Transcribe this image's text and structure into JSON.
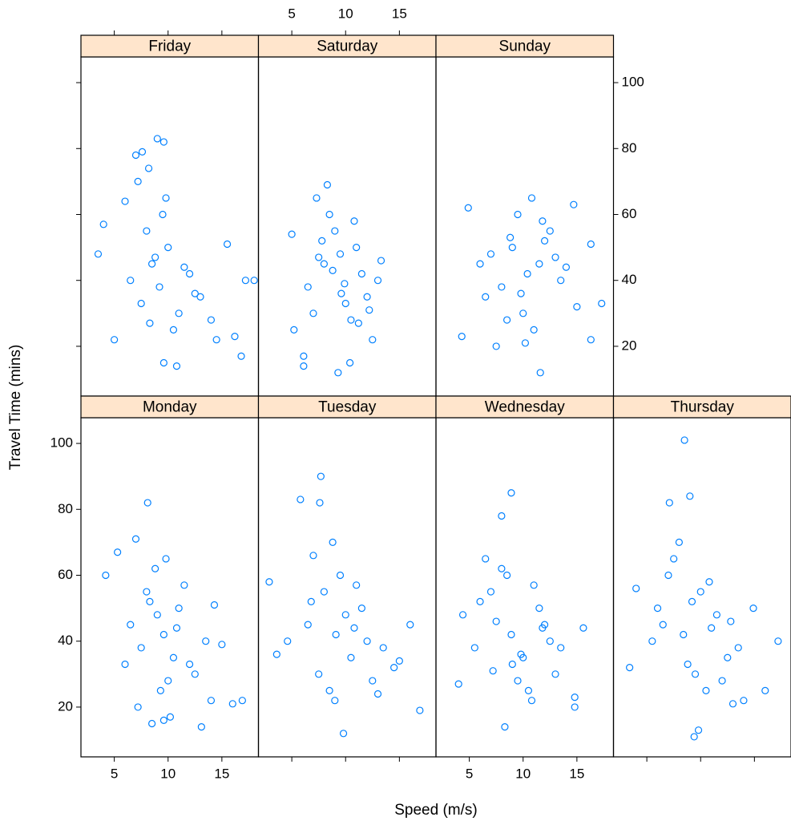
{
  "chart_data": {
    "type": "scatter",
    "x_label": "Speed (m/s)",
    "y_label": "Travel Time (mins)",
    "xlim": [
      1.9,
      18.4
    ],
    "ylim": [
      4.9,
      107.8
    ],
    "xticks": [
      5,
      10,
      15
    ],
    "yticks": [
      20,
      40,
      60,
      80,
      100
    ],
    "color": "#0080ff",
    "strip_color": "#ffe5cc",
    "panels": [
      {
        "title": "Friday",
        "x": [
          9.0,
          9.6,
          7.0,
          7.6,
          8.2,
          7.2,
          6.0,
          3.5,
          4.0,
          5.0,
          16.8,
          17.2,
          18.0,
          15.5,
          10.8,
          9.6,
          16.2,
          8.5,
          9.2,
          10.0,
          11.0,
          8.0,
          9.5,
          12.0,
          13.0,
          14.0,
          7.5,
          8.8,
          10.5,
          11.5,
          6.5,
          9.8,
          12.5,
          14.5,
          8.3
        ],
        "y": [
          83,
          82,
          78,
          79,
          74,
          70,
          64,
          48,
          57,
          22,
          17,
          40,
          40,
          51,
          14,
          15,
          23,
          45,
          38,
          50,
          30,
          55,
          60,
          42,
          35,
          28,
          33,
          47,
          25,
          44,
          40,
          65,
          36,
          22,
          27
        ]
      },
      {
        "title": "Saturday",
        "x": [
          5.0,
          5.2,
          8.3,
          6.1,
          6.1,
          9.3,
          10.4,
          13.3,
          7.3,
          9.9,
          8.0,
          11.0,
          12.0,
          7.0,
          9.0,
          10.5,
          11.5,
          8.5,
          6.5,
          12.5,
          9.5,
          10.0,
          7.8,
          11.2,
          13.0,
          8.8,
          9.6,
          10.8,
          7.5,
          12.2
        ],
        "y": [
          54,
          25,
          69,
          17,
          14,
          12,
          15,
          46,
          65,
          39,
          45,
          50,
          35,
          30,
          55,
          28,
          42,
          60,
          38,
          22,
          48,
          33,
          52,
          27,
          40,
          43,
          36,
          58,
          47,
          31
        ]
      },
      {
        "title": "Sunday",
        "x": [
          4.9,
          4.3,
          17.3,
          11.6,
          16.3,
          16.3,
          14.7,
          10.4,
          9.0,
          11.5,
          12.5,
          8.0,
          10.0,
          7.0,
          13.5,
          9.5,
          11.0,
          6.5,
          12.0,
          8.5,
          10.8,
          14.0,
          7.5,
          9.8,
          11.8,
          15.0,
          6.0,
          13.0,
          10.2,
          8.8
        ],
        "y": [
          62,
          23,
          33,
          12,
          22,
          51,
          63,
          42,
          50,
          45,
          55,
          38,
          30,
          48,
          40,
          60,
          25,
          35,
          52,
          28,
          65,
          44,
          20,
          36,
          58,
          32,
          45,
          47,
          21,
          53
        ]
      },
      {
        "title": "Monday",
        "x": [
          4.2,
          8.1,
          13.1,
          16.9,
          16.0,
          8.5,
          9.6,
          10.2,
          5.3,
          14.3,
          9.6,
          8.0,
          10.5,
          7.0,
          11.5,
          9.0,
          12.5,
          6.5,
          8.8,
          10.0,
          13.5,
          7.5,
          11.0,
          9.3,
          15.0,
          12.0,
          6.0,
          10.8,
          8.3,
          14.0,
          7.2,
          9.8
        ],
        "y": [
          60,
          82,
          14,
          22,
          21,
          15,
          16,
          17,
          67,
          51,
          42,
          55,
          35,
          71,
          57,
          48,
          30,
          45,
          62,
          28,
          40,
          38,
          50,
          25,
          39,
          33,
          33,
          44,
          52,
          22,
          20,
          65
        ]
      },
      {
        "title": "Tuesday",
        "x": [
          2.9,
          3.6,
          5.8,
          7.7,
          9.8,
          16.9,
          16.0,
          4.6,
          7.6,
          9.1,
          8.0,
          10.5,
          7.0,
          11.5,
          12.5,
          9.5,
          6.5,
          13.5,
          8.5,
          10.0,
          14.5,
          7.5,
          11.0,
          9.0,
          15.0,
          12.0,
          8.8,
          13.0,
          6.8,
          10.8
        ],
        "y": [
          58,
          36,
          83,
          90,
          12,
          19,
          45,
          40,
          82,
          42,
          55,
          35,
          66,
          50,
          28,
          60,
          45,
          38,
          25,
          48,
          32,
          30,
          57,
          22,
          34,
          40,
          70,
          24,
          52,
          44
        ]
      },
      {
        "title": "Wednesday",
        "x": [
          4.0,
          8.9,
          8.3,
          8.0,
          14.8,
          14.8,
          15.6,
          4.4,
          8.9,
          7.0,
          10.0,
          6.5,
          11.5,
          9.5,
          12.5,
          8.0,
          13.0,
          5.5,
          10.5,
          7.5,
          11.0,
          9.0,
          12.0,
          6.0,
          13.5,
          10.8,
          8.5,
          7.2,
          11.8,
          9.8
        ],
        "y": [
          27,
          85,
          14,
          78,
          23,
          20,
          44,
          48,
          42,
          55,
          35,
          65,
          50,
          28,
          40,
          62,
          30,
          38,
          25,
          46,
          57,
          33,
          45,
          52,
          38,
          22,
          60,
          31,
          44,
          36
        ]
      },
      {
        "title": "Thursday",
        "x": [
          8.5,
          3.4,
          9.4,
          9.8,
          17.2,
          16.0,
          14.9,
          4.0,
          8.4,
          9.0,
          7.1,
          7.5,
          10.0,
          6.5,
          11.5,
          9.5,
          12.5,
          8.0,
          13.5,
          5.5,
          10.5,
          7.0,
          12.0,
          9.2,
          14.0,
          11.0,
          8.8,
          6.0,
          13.0,
          10.8,
          12.8
        ],
        "y": [
          101,
          32,
          11,
          13,
          40,
          25,
          50,
          56,
          42,
          84,
          82,
          65,
          55,
          45,
          48,
          30,
          35,
          70,
          38,
          40,
          25,
          60,
          28,
          52,
          22,
          44,
          33,
          50,
          21,
          58,
          46
        ]
      }
    ]
  }
}
